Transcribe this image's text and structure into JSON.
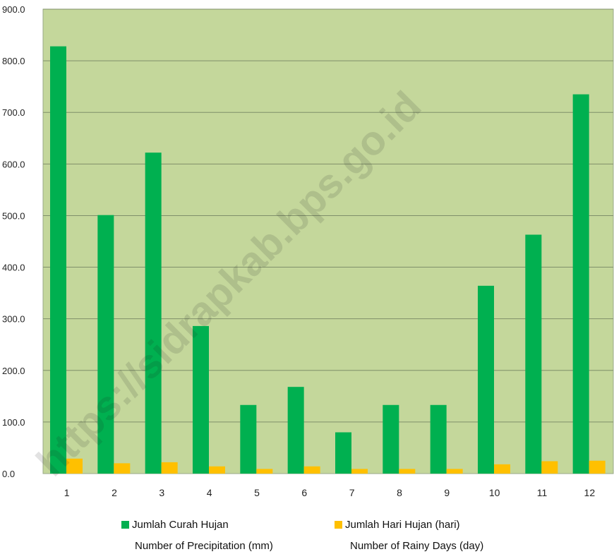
{
  "chart_data": {
    "type": "bar",
    "categories": [
      "1",
      "2",
      "3",
      "4",
      "5",
      "6",
      "7",
      "8",
      "9",
      "10",
      "11",
      "12"
    ],
    "series": [
      {
        "name": "Jumlah Curah Hujan",
        "subtitle": "Number of Precipitation (mm)",
        "color": "#00b050",
        "values": [
          828,
          501,
          622,
          286,
          133,
          168,
          80,
          133,
          133,
          364,
          463,
          735
        ]
      },
      {
        "name": "Jumlah Hari Hujan (hari)",
        "subtitle": "Number of Rainy Days (day)",
        "color": "#ffc000",
        "values": [
          29,
          20,
          22,
          14,
          9,
          14,
          9,
          9,
          9,
          18,
          24,
          25
        ]
      }
    ],
    "y_ticks": [
      "0.0",
      "100.0",
      "200.0",
      "300.0",
      "400.0",
      "500.0",
      "600.0",
      "700.0",
      "800.0",
      "900.0"
    ],
    "ylim": [
      0,
      900
    ],
    "grid": true,
    "legend_position": "bottom",
    "plot_background": "#c4d79b",
    "gridline_color": "#7f8f6a"
  },
  "watermark": "https://sidrapkab.bps.go.id"
}
